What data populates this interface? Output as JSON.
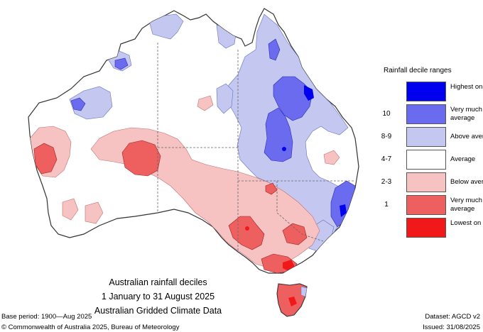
{
  "title": {
    "line1": "Australian rainfall deciles",
    "line2": "1 January to 31 August 2025",
    "line3": "Australian Gridded Climate Data"
  },
  "footer": {
    "base_period": "Base period: 1900—Aug 2025",
    "copyright": "© Commonwealth of Australia 2025, Bureau of Meteorology",
    "dataset": "Dataset: AGCD v2",
    "issued": "Issued: 31/08/2025"
  },
  "legend": {
    "title": "Rainfall decile ranges",
    "items": [
      {
        "range": "",
        "label": "Highest on record",
        "color": "#0000ee"
      },
      {
        "range": "10",
        "label": "Very much above average",
        "color": "#6b6bf0"
      },
      {
        "range": "8-9",
        "label": "Above average",
        "color": "#c4c8f0"
      },
      {
        "range": "4-7",
        "label": "Average",
        "color": "#ffffff"
      },
      {
        "range": "2-3",
        "label": "Below average",
        "color": "#f6c2c2"
      },
      {
        "range": "1",
        "label": "Very much below average",
        "color": "#ee6060"
      },
      {
        "range": "",
        "label": "Lowest on record",
        "color": "#f01818"
      }
    ]
  },
  "colors": {
    "highest": "#0000ee",
    "very_much_above": "#6b6bf0",
    "above": "#c4c8f0",
    "average": "#ffffff",
    "below": "#f6c2c2",
    "very_much_below": "#ee6060",
    "lowest": "#f01818"
  }
}
